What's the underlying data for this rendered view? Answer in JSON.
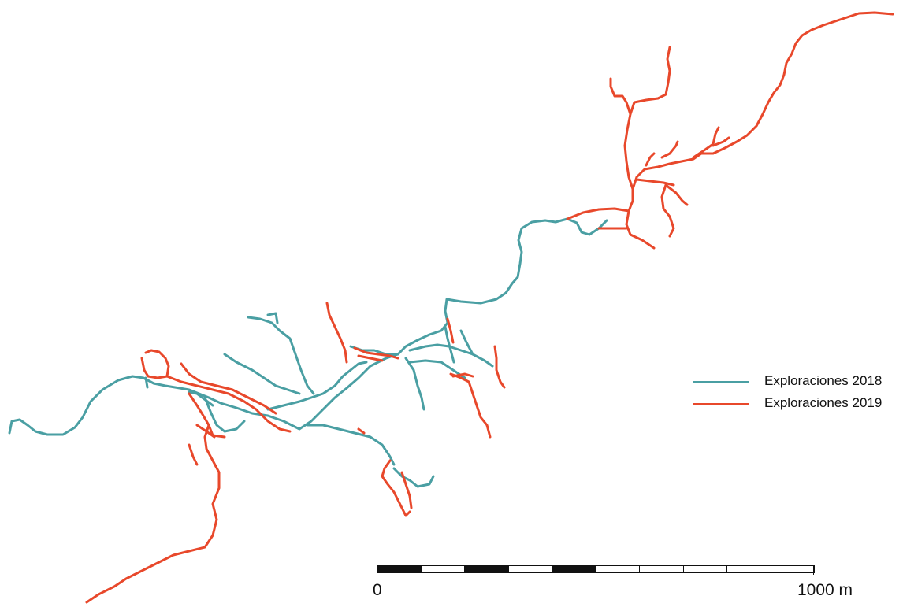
{
  "colors": {
    "exploration_2018": "#4a9fa3",
    "exploration_2019": "#e8482b",
    "scale_dark": "#111111",
    "scale_light": "#ffffff"
  },
  "legend": {
    "items": [
      {
        "label": "Exploraciones 2018",
        "color_key": "exploration_2018"
      },
      {
        "label": "Exploraciones 2019",
        "color_key": "exploration_2019"
      }
    ]
  },
  "scale_bar": {
    "start_label": "0",
    "end_label": "1000 m",
    "segments": 10,
    "pattern": [
      "dark",
      "light",
      "dark",
      "light",
      "dark",
      "light",
      "light",
      "light",
      "light",
      "light"
    ]
  }
}
